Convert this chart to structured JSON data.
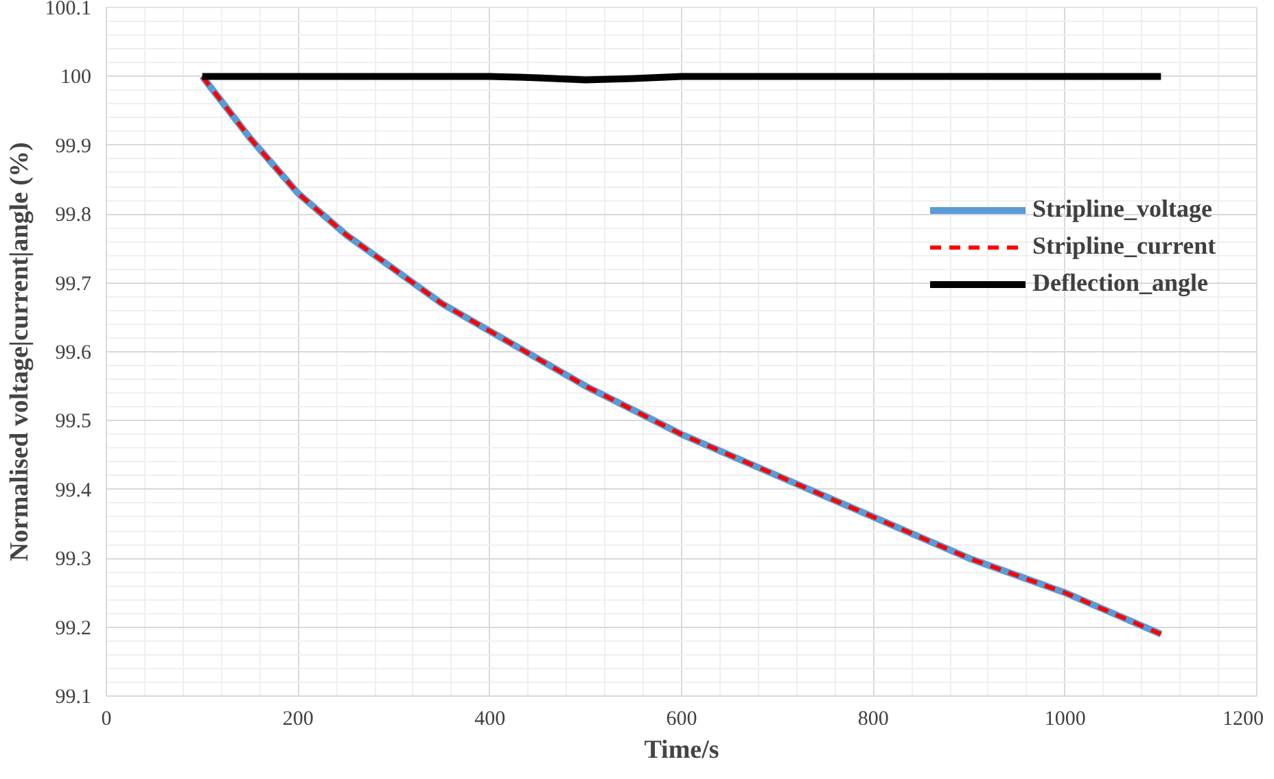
{
  "chart_data": {
    "type": "line",
    "xlabel": "Time/s",
    "ylabel": "Normalised voltage|current|angle (%)",
    "x": [
      100,
      150,
      200,
      250,
      300,
      350,
      400,
      450,
      500,
      550,
      600,
      650,
      700,
      750,
      800,
      850,
      900,
      950,
      1000,
      1050,
      1100
    ],
    "series": [
      {
        "name": "Stripline_voltage",
        "color": "#5b9bd5",
        "line_style": "solid",
        "values": [
          100,
          99.91,
          99.83,
          99.77,
          99.72,
          99.67,
          99.63,
          99.59,
          99.55,
          99.515,
          99.48,
          99.45,
          99.42,
          99.39,
          99.36,
          99.33,
          99.3,
          99.275,
          99.25,
          99.22,
          99.19
        ]
      },
      {
        "name": "Stripline_current",
        "color": "#ff0000",
        "line_style": "dashed",
        "values": [
          100,
          99.91,
          99.83,
          99.77,
          99.72,
          99.67,
          99.63,
          99.59,
          99.55,
          99.515,
          99.48,
          99.45,
          99.42,
          99.39,
          99.36,
          99.33,
          99.3,
          99.275,
          99.25,
          99.22,
          99.19
        ]
      },
      {
        "name": "Deflection_angle",
        "color": "#000000",
        "line_style": "solid",
        "values": [
          100,
          100,
          100,
          100,
          100,
          100,
          100,
          99.998,
          99.995,
          99.997,
          100,
          100,
          100,
          100,
          100,
          100,
          100,
          100,
          100,
          100,
          100
        ]
      }
    ],
    "xlim": [
      0,
      1200
    ],
    "xticks": [
      0,
      200,
      400,
      600,
      800,
      1000,
      1200
    ],
    "ylim": [
      99.1,
      100.1
    ],
    "yticks": [
      {
        "value": 99.1,
        "label": "99.1"
      },
      {
        "value": 99.2,
        "label": "99.2"
      },
      {
        "value": 99.3,
        "label": "99.3"
      },
      {
        "value": 99.4,
        "label": "99.4"
      },
      {
        "value": 99.5,
        "label": "99.5"
      },
      {
        "value": 99.6,
        "label": "99.6"
      },
      {
        "value": 99.7,
        "label": "99.7"
      },
      {
        "value": 99.8,
        "label": "99.8"
      },
      {
        "value": 99.9,
        "label": "99.9"
      },
      {
        "value": 100,
        "label": "100"
      },
      {
        "value": 100.1,
        "label": "100.1"
      }
    ],
    "grid": true,
    "legend": "top right"
  }
}
